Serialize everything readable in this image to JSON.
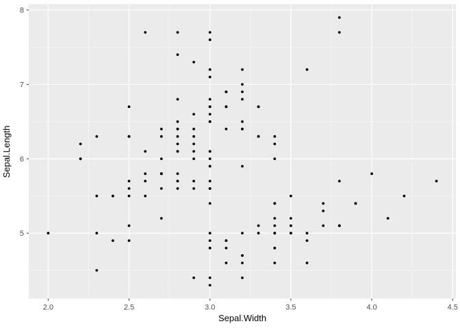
{
  "chart_data": {
    "type": "scatter",
    "title": "",
    "xlabel": "Sepal.Width",
    "ylabel": "Sepal.Length",
    "xlim": [
      1.88,
      4.52
    ],
    "ylim": [
      4.12,
      8.08
    ],
    "x_ticks": [
      2.0,
      2.5,
      3.0,
      3.5,
      4.0,
      4.5
    ],
    "x_tick_labels": [
      "2.0",
      "2.5",
      "3.0",
      "3.5",
      "4.0",
      "4.5"
    ],
    "y_ticks": [
      5,
      6,
      7,
      8
    ],
    "y_tick_labels": [
      "5",
      "6",
      "7",
      "8"
    ],
    "x_minor_ticks": [
      2.25,
      2.75,
      3.25,
      3.75,
      4.25
    ],
    "y_minor_ticks": [
      4.5,
      5.5,
      6.5,
      7.5
    ],
    "grid": true,
    "legend": false,
    "panel_background": "#EBEBEB",
    "grid_major_color": "#FFFFFF",
    "grid_minor_color": "#F7F7F7",
    "tick_mark_color": "#333333",
    "tick_label_color": "#4D4D4D",
    "point_color": "#000000",
    "point_radius": 1.9,
    "points": [
      [
        3.5,
        5.1
      ],
      [
        3.0,
        4.9
      ],
      [
        3.2,
        4.7
      ],
      [
        3.1,
        4.6
      ],
      [
        3.6,
        5.0
      ],
      [
        3.9,
        5.4
      ],
      [
        3.4,
        4.6
      ],
      [
        3.4,
        5.0
      ],
      [
        2.9,
        4.4
      ],
      [
        3.1,
        4.9
      ],
      [
        3.7,
        5.4
      ],
      [
        3.4,
        4.8
      ],
      [
        3.0,
        4.8
      ],
      [
        3.0,
        4.3
      ],
      [
        4.0,
        5.8
      ],
      [
        4.4,
        5.7
      ],
      [
        3.9,
        5.4
      ],
      [
        3.5,
        5.1
      ],
      [
        3.8,
        5.7
      ],
      [
        3.8,
        5.1
      ],
      [
        3.4,
        5.4
      ],
      [
        3.7,
        5.1
      ],
      [
        3.6,
        4.6
      ],
      [
        3.3,
        5.1
      ],
      [
        3.4,
        4.8
      ],
      [
        3.0,
        5.0
      ],
      [
        3.4,
        5.0
      ],
      [
        3.5,
        5.2
      ],
      [
        3.4,
        5.2
      ],
      [
        3.2,
        4.7
      ],
      [
        3.1,
        4.8
      ],
      [
        3.4,
        5.4
      ],
      [
        4.1,
        5.2
      ],
      [
        4.2,
        5.5
      ],
      [
        3.1,
        4.9
      ],
      [
        3.2,
        5.0
      ],
      [
        3.5,
        5.5
      ],
      [
        3.6,
        4.9
      ],
      [
        3.0,
        4.4
      ],
      [
        3.4,
        5.1
      ],
      [
        3.5,
        5.0
      ],
      [
        2.3,
        4.5
      ],
      [
        3.2,
        4.4
      ],
      [
        3.5,
        5.0
      ],
      [
        3.8,
        5.1
      ],
      [
        3.0,
        4.8
      ],
      [
        3.8,
        5.1
      ],
      [
        3.2,
        4.6
      ],
      [
        3.7,
        5.3
      ],
      [
        3.3,
        5.0
      ],
      [
        3.2,
        7.0
      ],
      [
        3.2,
        6.4
      ],
      [
        3.1,
        6.9
      ],
      [
        2.3,
        5.5
      ],
      [
        2.8,
        6.5
      ],
      [
        2.8,
        5.7
      ],
      [
        3.3,
        6.3
      ],
      [
        2.4,
        4.9
      ],
      [
        2.9,
        6.6
      ],
      [
        2.7,
        5.2
      ],
      [
        2.0,
        5.0
      ],
      [
        3.0,
        5.9
      ],
      [
        2.2,
        6.0
      ],
      [
        2.9,
        6.1
      ],
      [
        2.9,
        5.6
      ],
      [
        3.1,
        6.7
      ],
      [
        3.0,
        5.6
      ],
      [
        2.7,
        5.8
      ],
      [
        2.2,
        6.2
      ],
      [
        2.5,
        5.6
      ],
      [
        3.2,
        5.9
      ],
      [
        2.8,
        6.1
      ],
      [
        2.5,
        6.3
      ],
      [
        2.8,
        6.1
      ],
      [
        2.9,
        6.4
      ],
      [
        3.0,
        6.6
      ],
      [
        2.8,
        6.8
      ],
      [
        3.0,
        6.7
      ],
      [
        2.9,
        6.0
      ],
      [
        2.6,
        5.7
      ],
      [
        2.4,
        5.5
      ],
      [
        2.4,
        5.5
      ],
      [
        2.7,
        5.8
      ],
      [
        2.7,
        6.0
      ],
      [
        3.0,
        5.4
      ],
      [
        3.4,
        6.0
      ],
      [
        3.1,
        6.7
      ],
      [
        2.3,
        6.3
      ],
      [
        3.0,
        5.6
      ],
      [
        2.5,
        5.5
      ],
      [
        2.6,
        5.5
      ],
      [
        3.0,
        6.1
      ],
      [
        2.6,
        5.8
      ],
      [
        2.3,
        5.0
      ],
      [
        2.7,
        5.6
      ],
      [
        3.0,
        5.7
      ],
      [
        2.9,
        5.7
      ],
      [
        2.9,
        6.2
      ],
      [
        2.5,
        5.1
      ],
      [
        2.8,
        5.7
      ],
      [
        3.3,
        6.3
      ],
      [
        2.7,
        5.8
      ],
      [
        3.0,
        7.1
      ],
      [
        2.9,
        6.3
      ],
      [
        3.0,
        6.5
      ],
      [
        3.0,
        7.6
      ],
      [
        2.5,
        4.9
      ],
      [
        2.9,
        7.3
      ],
      [
        2.5,
        6.7
      ],
      [
        3.6,
        7.2
      ],
      [
        3.2,
        6.5
      ],
      [
        2.7,
        6.4
      ],
      [
        3.0,
        6.8
      ],
      [
        2.5,
        5.7
      ],
      [
        2.8,
        5.8
      ],
      [
        3.2,
        6.4
      ],
      [
        3.0,
        6.5
      ],
      [
        3.8,
        7.7
      ],
      [
        2.6,
        7.7
      ],
      [
        2.2,
        6.0
      ],
      [
        3.2,
        6.9
      ],
      [
        2.8,
        5.6
      ],
      [
        2.8,
        7.7
      ],
      [
        2.7,
        6.3
      ],
      [
        3.3,
        6.7
      ],
      [
        3.2,
        7.2
      ],
      [
        2.8,
        6.2
      ],
      [
        3.0,
        6.1
      ],
      [
        2.8,
        6.4
      ],
      [
        3.0,
        7.2
      ],
      [
        2.8,
        7.4
      ],
      [
        3.8,
        7.9
      ],
      [
        2.8,
        6.4
      ],
      [
        2.8,
        6.3
      ],
      [
        2.6,
        6.1
      ],
      [
        3.0,
        7.7
      ],
      [
        3.4,
        6.3
      ],
      [
        3.1,
        6.4
      ],
      [
        3.0,
        6.0
      ],
      [
        3.1,
        6.9
      ],
      [
        3.1,
        6.7
      ],
      [
        3.1,
        6.9
      ],
      [
        2.7,
        5.8
      ],
      [
        3.2,
        6.8
      ],
      [
        3.3,
        6.7
      ],
      [
        3.0,
        6.7
      ],
      [
        2.5,
        6.3
      ],
      [
        3.0,
        6.5
      ],
      [
        3.4,
        6.2
      ],
      [
        3.0,
        5.9
      ]
    ]
  }
}
